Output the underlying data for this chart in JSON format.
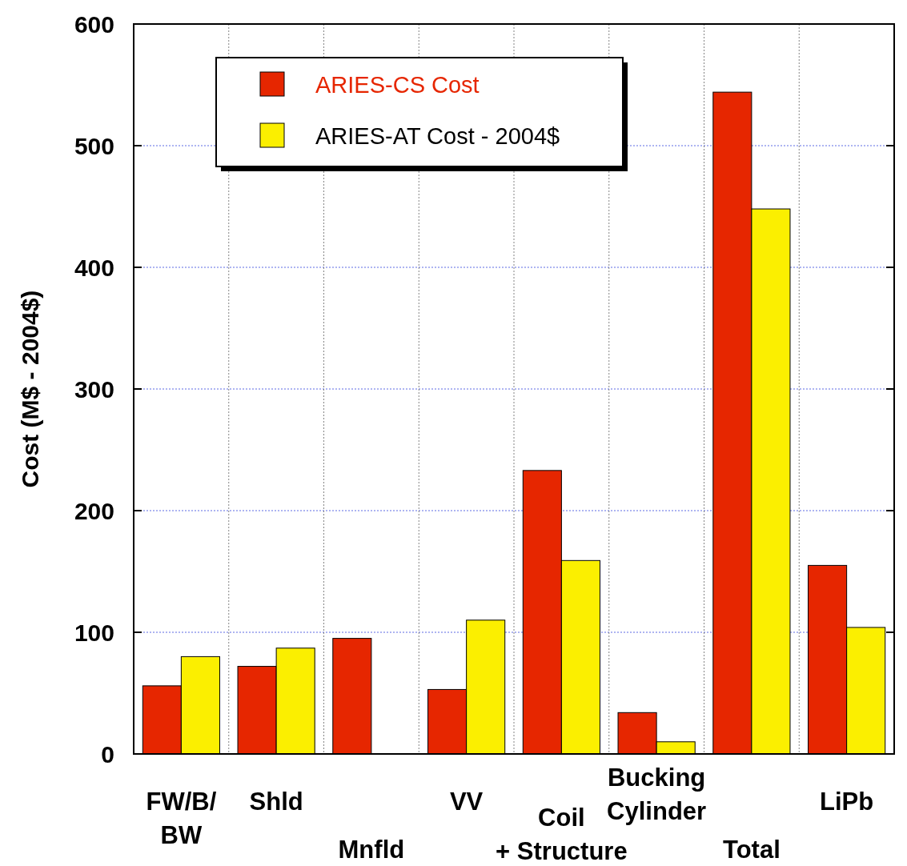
{
  "chart_data": {
    "type": "bar",
    "ylabel": "Cost (M$ - 2004$)",
    "categories": [
      "FW/B/\nBW",
      "Shld",
      "Mnfld",
      "VV",
      "Coil\n+ Structure",
      "Bucking\nCylinder",
      "Total",
      "LiPb"
    ],
    "series": [
      {
        "name": "ARIES-CS Cost",
        "color": "#e62600",
        "values": [
          56,
          72,
          95,
          53,
          233,
          34,
          544,
          155
        ]
      },
      {
        "name": "ARIES-AT Cost - 2004$",
        "color": "#fbef00",
        "values": [
          80,
          87,
          null,
          110,
          159,
          10,
          448,
          104
        ]
      }
    ],
    "ylim": [
      0,
      600
    ],
    "yticks": [
      0,
      100,
      200,
      300,
      400,
      500,
      600
    ],
    "grid": true,
    "legend": "top"
  }
}
